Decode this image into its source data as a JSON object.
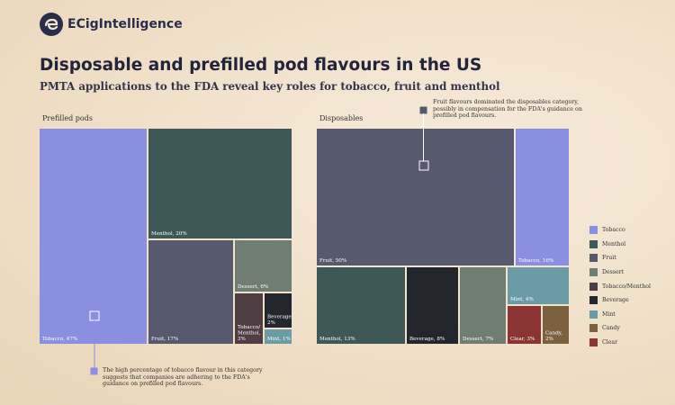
{
  "brand": {
    "name": "ECigIntelligence"
  },
  "header": {
    "title": "Disposable and prefilled pod flavours in the US",
    "subtitle": "PMTA applications to the FDA reveal key roles for tobacco, fruit and menthol"
  },
  "colors": {
    "Tobacco": "#8a8fe0",
    "Menthol": "#3d5857",
    "Fruit": "#575a6e",
    "Dessert": "#6f7d72",
    "Tobacco/Menthol": "#4e3d42",
    "Beverage": "#24262e",
    "Mint": "#6b9ca6",
    "Candy": "#7c6140",
    "Clear": "#8a3434"
  },
  "chart_data": [
    {
      "type": "treemap",
      "title": "Prefilled pods",
      "items": [
        {
          "category": "Tobacco",
          "value": 47,
          "label": "Tobacco, 47%"
        },
        {
          "category": "Menthol",
          "value": 20,
          "label": "Menthol, 20%"
        },
        {
          "category": "Fruit",
          "value": 17,
          "label": "Fruit, 17%"
        },
        {
          "category": "Dessert",
          "value": 6,
          "label": "Dessert, 6%"
        },
        {
          "category": "Tobacco/Menthol",
          "value": 3,
          "label": "Tobacco/ Menthol, 3%"
        },
        {
          "category": "Beverage",
          "value": 2,
          "label": "Beverage, 2%"
        },
        {
          "category": "Mint",
          "value": 1,
          "label": "Mint, 1%"
        }
      ]
    },
    {
      "type": "treemap",
      "title": "Disposables",
      "items": [
        {
          "category": "Fruit",
          "value": 50,
          "label": "Fruit, 50%"
        },
        {
          "category": "Tobacco",
          "value": 16,
          "label": "Tobacco, 16%"
        },
        {
          "category": "Menthol",
          "value": 13,
          "label": "Menthol, 13%"
        },
        {
          "category": "Beverage",
          "value": 8,
          "label": "Beverage, 8%"
        },
        {
          "category": "Dessert",
          "value": 7,
          "label": "Dessert, 7%"
        },
        {
          "category": "Mint",
          "value": 4,
          "label": "Mint, 4%"
        },
        {
          "category": "Clear",
          "value": 3,
          "label": "Clear, 3%"
        },
        {
          "category": "Candy",
          "value": 2,
          "label": "Candy, 2%"
        }
      ]
    }
  ],
  "legend": [
    "Tobacco",
    "Menthol",
    "Fruit",
    "Dessert",
    "Tobacco/Menthol",
    "Beverage",
    "Mint",
    "Candy",
    "Clear"
  ],
  "annotations": {
    "prefilled": "The high percentage of tobacco flavour in this category suggests that companies are adhering to the FDA's guidance on prefilled pod flavours.",
    "disposables": "Fruit flavours dominated the disposables category, possibly in compensation for the FDA's guidance on prefilled pod flavours."
  }
}
